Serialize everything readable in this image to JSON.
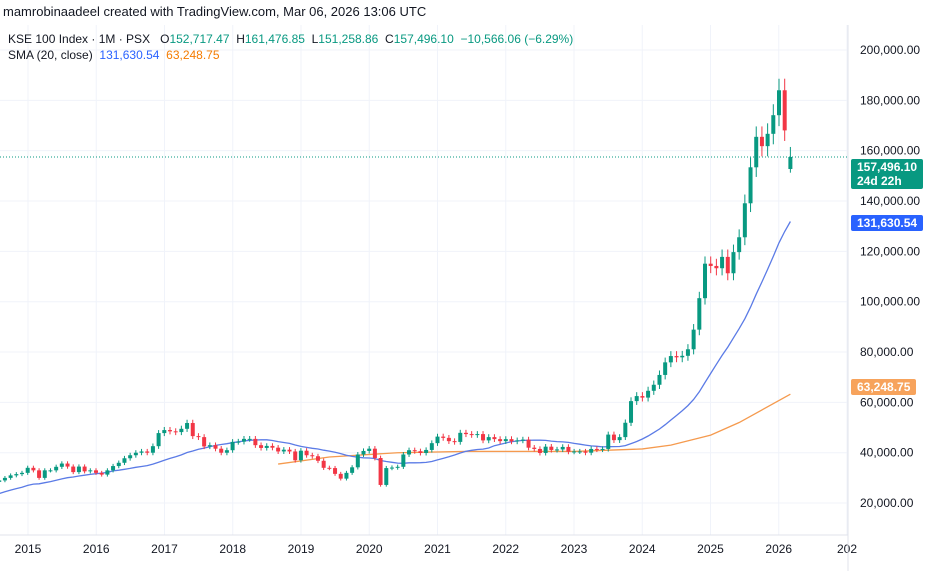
{
  "header": {
    "credit": "mamrobinaadeel created with TradingView.com, Mar 06, 2026 13:06 UTC"
  },
  "legend": {
    "symbol": "KSE 100 Index · 1M · PSX",
    "open_label": "O",
    "open": "152,717.47",
    "high_label": "H",
    "high": "161,476.85",
    "low_label": "L",
    "low": "151,258.86",
    "close_label": "C",
    "close": "157,496.10",
    "change": "−10,566.06 (−6.29%)",
    "sma_label": "SMA (20, close)",
    "sma_fast": "131,630.54",
    "sma_slow": "63,248.75"
  },
  "price_badge": {
    "price": "157,496.10",
    "countdown": "24d 22h"
  },
  "sma_fast_badge": "131,630.54",
  "sma_slow_badge": "63,248.75",
  "colors": {
    "up": "#089981",
    "down": "#f23645",
    "sma_fast": "#5b7be6",
    "sma_slow": "#f59a4e",
    "grid": "#f0f3fa"
  },
  "chart_data": {
    "type": "candlestick",
    "title": "KSE 100 Index · 1M · PSX",
    "start_month": "2014-08",
    "closes": [
      29,
      30,
      31,
      31.5,
      32,
      34,
      33,
      30,
      33,
      33,
      34.4,
      35.7,
      34.5,
      32.3,
      34.5,
      32.6,
      33,
      32,
      31.3,
      33,
      34.7,
      36,
      37.8,
      39,
      40,
      40.5,
      40,
      42.6,
      47.8,
      49,
      48.5,
      48.2,
      49.5,
      51.8,
      46.6,
      46.2,
      42.5,
      43,
      41.6,
      40,
      41,
      44.3,
      44.4,
      45.5,
      45.5,
      43,
      41.9,
      42.7,
      42,
      40.5,
      41.2,
      40.5,
      37,
      40.8,
      39,
      38.6,
      36.8,
      34,
      33.9,
      31.6,
      29.7,
      32,
      34.2,
      39.3,
      40.7,
      41.6,
      37.9,
      27.2,
      33.9,
      34.1,
      34.4,
      39.3,
      41,
      40.6,
      39.9,
      41.1,
      43.8,
      46.4,
      45.9,
      44.6,
      44.3,
      47.9,
      47.4,
      47.1,
      47.4,
      44.9,
      46.2,
      45.4,
      44.6,
      45.4,
      44.5,
      44.9,
      45.2,
      42,
      41.5,
      39.9,
      42.4,
      41.1,
      41.3,
      42.3,
      40.4,
      40.5,
      40.5,
      40,
      41.5,
      41.3,
      41.5,
      47.2,
      45,
      46.2,
      51.9,
      60.5,
      62.5,
      61.9,
      64.6,
      67,
      70.9,
      75.9,
      78.4,
      77.9,
      78.5,
      81.1,
      88.9,
      101.4,
      115.1,
      114.2,
      113.3,
      117.8,
      111.3,
      119.7,
      125.6,
      139.1,
      153.4,
      165.5,
      161.8,
      166.7,
      174.1,
      184,
      168.06,
      157.496
    ],
    "value_unit": "thousands",
    "last_candle": {
      "open": 152717.47,
      "high": 161476.85,
      "low": 151258.86,
      "close": 157496.1
    },
    "sma_fast_length": 20,
    "sma_slow_points": [
      [
        "2018-09",
        35.5
      ],
      [
        "2019-06",
        38.3
      ],
      [
        "2020-06",
        40
      ],
      [
        "2021-06",
        40.5
      ],
      [
        "2023-01",
        40.5
      ],
      [
        "2024-01",
        41.5
      ],
      [
        "2024-06",
        43
      ],
      [
        "2025-01",
        47
      ],
      [
        "2025-06",
        52
      ],
      [
        "2026-03",
        63.25
      ]
    ],
    "x_ticks": [
      "2015",
      "2016",
      "2017",
      "2018",
      "2019",
      "2020",
      "2021",
      "2022",
      "2023",
      "2024",
      "2025",
      "2026",
      "202"
    ],
    "y_ticks": [
      "200,000.00",
      "180,000.00",
      "160,000.00",
      "140,000.00",
      "120,000.00",
      "100,000.00",
      "80,000.00",
      "60,000.00",
      "40,000.00",
      "20,000.00"
    ],
    "y_tick_values": [
      200000,
      180000,
      160000,
      140000,
      120000,
      100000,
      80000,
      60000,
      40000,
      20000
    ],
    "ylim": [
      10000,
      210000
    ],
    "grid": true
  }
}
